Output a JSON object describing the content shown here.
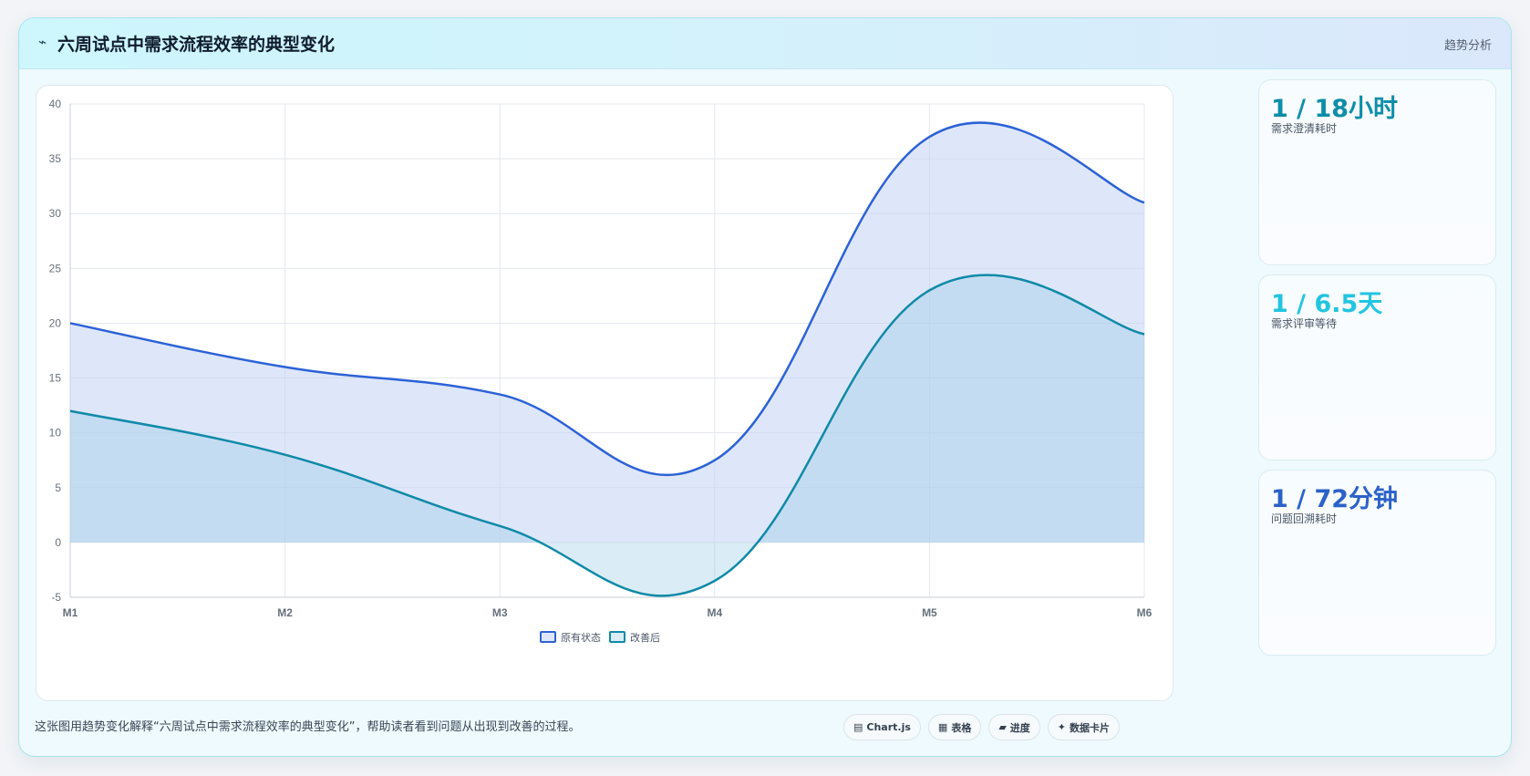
{
  "header": {
    "icon": "pulse-icon",
    "title": "六周试点中需求流程效率的典型变化",
    "tag": "趋势分析"
  },
  "stats": [
    {
      "value": "1 / 18小时",
      "label": "需求澄清耗时",
      "color": "#0d8ea8"
    },
    {
      "value": "1 / 6.5天",
      "label": "需求评审等待",
      "color": "#22c5df"
    },
    {
      "value": "1 / 72分钟",
      "label": "问题回溯耗时",
      "color": "#2b62c9"
    }
  ],
  "footer": {
    "note": "这张图用趋势变化解释“六周试点中需求流程效率的典型变化”，帮助读者看到问题从出现到改善的过程。",
    "pills": [
      {
        "icon": "chart-icon",
        "glyph": "▤",
        "label": "Chart.js"
      },
      {
        "icon": "table-icon",
        "glyph": "▦",
        "label": "表格"
      },
      {
        "icon": "progress-icon",
        "glyph": "▰",
        "label": "进度"
      },
      {
        "icon": "card-icon",
        "glyph": "✦",
        "label": "数据卡片"
      }
    ]
  },
  "chart_data": {
    "type": "area",
    "categories": [
      "M1",
      "M2",
      "M3",
      "M4",
      "M5",
      "M6"
    ],
    "series": [
      {
        "name": "原有状态",
        "values": [
          20,
          16,
          13.5,
          7.5,
          37,
          31
        ],
        "color": "#2c62d6",
        "fill": "rgba(195,212,245,0.55)"
      },
      {
        "name": "改善后",
        "values": [
          12,
          8,
          1.5,
          -3.5,
          23,
          19
        ],
        "color": "#0f8aa8",
        "fill": "rgba(150,200,225,0.35)"
      }
    ],
    "ylim": [
      -5,
      40
    ],
    "yticks": [
      -5,
      0,
      5,
      10,
      15,
      20,
      25,
      30,
      35,
      40
    ],
    "grid": true,
    "legend": "bottom"
  }
}
